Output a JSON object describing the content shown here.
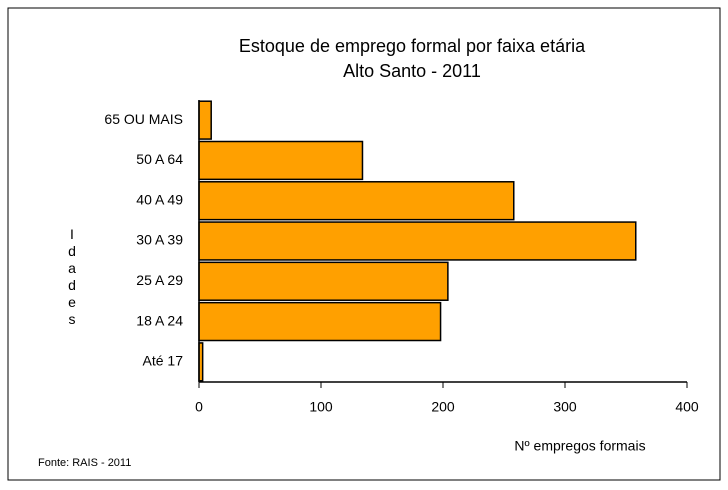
{
  "chart_data": {
    "type": "bar",
    "orientation": "horizontal",
    "title": "Estoque de emprego formal por faixa etária",
    "subtitle": "Alto Santo - 2011",
    "categories": [
      "65 OU MAIS",
      "50 A 64",
      "40 A 49",
      "30 A 39",
      "25 A 29",
      "18 A 24",
      "Até 17"
    ],
    "values": [
      10,
      134,
      258,
      358,
      204,
      198,
      3
    ],
    "color": "#ffa000",
    "xlim": [
      0,
      400
    ],
    "xticks": [
      0,
      100,
      200,
      300,
      400
    ],
    "xlabel": "Nº empregos formais",
    "ylabel": "Idades",
    "source": "Fonte: RAIS - 2011"
  }
}
